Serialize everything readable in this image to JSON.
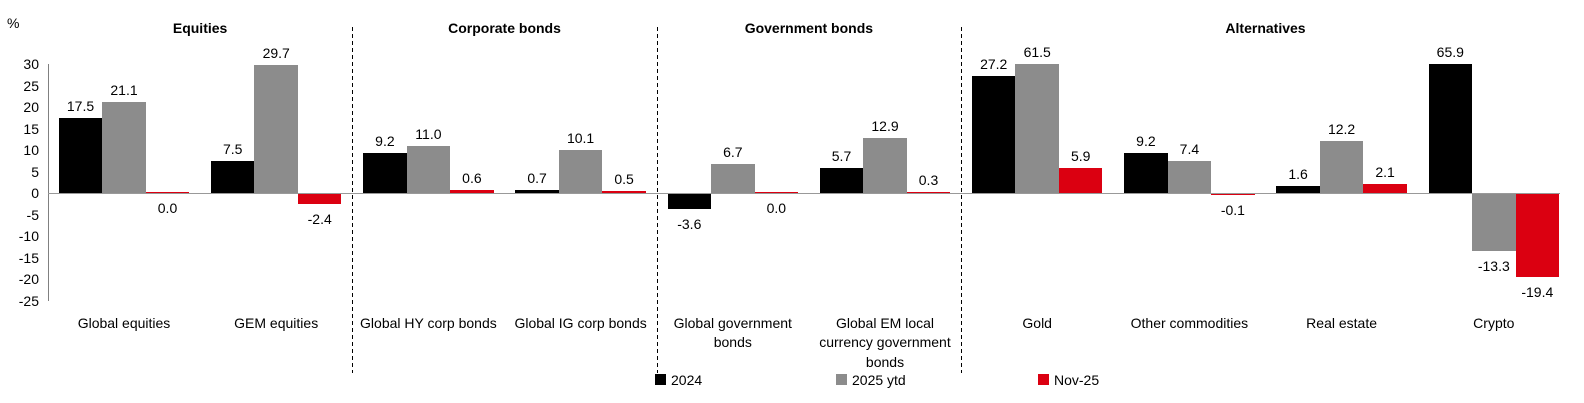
{
  "chart_data": {
    "type": "bar",
    "title": "",
    "unit_label": "%",
    "ylim": [
      -25,
      30
    ],
    "yticks": [
      30,
      25,
      20,
      15,
      10,
      5,
      0,
      -5,
      -10,
      -15,
      -20,
      -25
    ],
    "grid": false,
    "value_labels_decimals": 1,
    "bars_clipped_at_ymax": [
      "Gold 2025 ytd 61.5",
      "Crypto 2024 65.9"
    ],
    "legend_position": "bottom",
    "colors": {
      "series_2024": "#000000",
      "series_2025_ytd": "#8C8C8C",
      "series_nov25": "#DB0011",
      "axis": "#808080",
      "zero_line": "#999999",
      "separator": "#000000",
      "text": "#000000",
      "background": "#FFFFFF"
    },
    "series": [
      {
        "name": "2024",
        "color": "#000000"
      },
      {
        "name": "2025 ytd",
        "color": "#8C8C8C"
      },
      {
        "name": "Nov-25",
        "color": "#DB0011"
      }
    ],
    "sections": [
      {
        "title": "Equities",
        "groups": [
          {
            "label": "Global equities",
            "values": [
              17.5,
              21.1,
              0.0
            ]
          },
          {
            "label": "GEM equities",
            "values": [
              7.5,
              29.7,
              -2.4
            ]
          }
        ]
      },
      {
        "title": "Corporate bonds",
        "groups": [
          {
            "label": "Global HY corp bonds",
            "values": [
              9.2,
              11.0,
              0.6
            ]
          },
          {
            "label": "Global IG corp bonds",
            "values": [
              0.7,
              10.1,
              0.5
            ]
          }
        ]
      },
      {
        "title": "Government bonds",
        "groups": [
          {
            "label": "Global government bonds",
            "values": [
              -3.6,
              6.7,
              0.0
            ]
          },
          {
            "label": "Global EM local currency government bonds",
            "values": [
              5.7,
              12.9,
              0.3
            ]
          }
        ]
      },
      {
        "title": "Alternatives",
        "groups": [
          {
            "label": "Gold",
            "values": [
              27.2,
              61.5,
              5.9
            ]
          },
          {
            "label": "Other commodities",
            "values": [
              9.2,
              7.4,
              -0.1
            ]
          },
          {
            "label": "Real estate",
            "values": [
              1.6,
              12.2,
              2.1
            ]
          },
          {
            "label": "Crypto",
            "values": [
              65.9,
              -13.3,
              -19.4
            ]
          }
        ]
      }
    ]
  }
}
